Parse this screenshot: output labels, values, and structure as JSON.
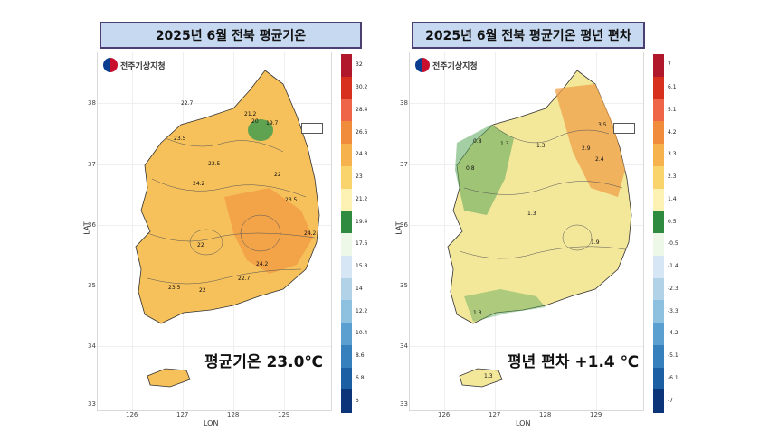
{
  "panels": [
    {
      "title": "2025년 6월 전북 평균기온",
      "logo_text": "전주기상지청",
      "logo_icon": "taegeuk-logo-icon",
      "y_axis": {
        "title": "LAT",
        "ticks": [
          "38",
          "37",
          "36",
          "35",
          "34",
          "33"
        ]
      },
      "x_axis": {
        "title": "LON",
        "ticks": [
          "126",
          "127",
          "128",
          "129"
        ]
      },
      "legend_labels": [
        "32",
        "30.2",
        "28.4",
        "26.6",
        "24.8",
        "23",
        "21.2",
        "19.4",
        "17.6",
        "15.8",
        "14",
        "12.2",
        "10.4",
        "8.6",
        "6.8",
        "5"
      ],
      "legend_colors": [
        "#b2182b",
        "#d7301f",
        "#ef6548",
        "#f08c3c",
        "#f6b24d",
        "#f9d36b",
        "#fdf2b3",
        "#2e8b3f",
        "#eef8e8",
        "#d6e6f4",
        "#b2d2e8",
        "#8ec0e0",
        "#5a9fcf",
        "#3580bd",
        "#1c5fa3",
        "#0b3578"
      ],
      "contour_labels": [
        "22.7",
        "23.5",
        "21.2",
        "20",
        "19.7",
        "23.5",
        "24.2",
        "22",
        "23.5",
        "24.2",
        "22",
        "24.2",
        "22.7",
        "23.5",
        "22"
      ],
      "summary": "평균기온 23.0℃",
      "land_color": "#f6c15a",
      "accent_color": "#f08c3c",
      "hotspot_color": "#3a9a4c"
    },
    {
      "title": "2025년 6월 전북 평균기온 평년 편차",
      "logo_text": "전주기상지청",
      "logo_icon": "taegeuk-logo-icon",
      "y_axis": {
        "title": "LAT",
        "ticks": [
          "38",
          "37",
          "36",
          "35",
          "34",
          "33"
        ]
      },
      "x_axis": {
        "title": "LON",
        "ticks": [
          "126",
          "127",
          "128",
          "129"
        ]
      },
      "legend_labels": [
        "7",
        "6.1",
        "5.1",
        "4.2",
        "3.3",
        "2.3",
        "1.4",
        "0.5",
        "-0.5",
        "-1.4",
        "-2.3",
        "-3.3",
        "-4.2",
        "-5.1",
        "-6.1",
        "-7"
      ],
      "legend_colors": [
        "#b2182b",
        "#d7301f",
        "#ef6548",
        "#f08c3c",
        "#f6b24d",
        "#f9d36b",
        "#fdf2b3",
        "#2e8b3f",
        "#eef8e8",
        "#d6e6f4",
        "#b2d2e8",
        "#8ec0e0",
        "#5a9fcf",
        "#3580bd",
        "#1c5fa3",
        "#0b3578"
      ],
      "contour_labels": [
        "0.8",
        "1.3",
        "1.3",
        "0.8",
        "3.5",
        "2.9",
        "2.4",
        "1.3",
        "1.9",
        "1.3",
        "1.3"
      ],
      "summary": "평년 편차 +1.4 ℃",
      "land_color": "#f3e79a",
      "accent_color": "#f0a04a",
      "hotspot_color": "#5aa85a"
    }
  ]
}
